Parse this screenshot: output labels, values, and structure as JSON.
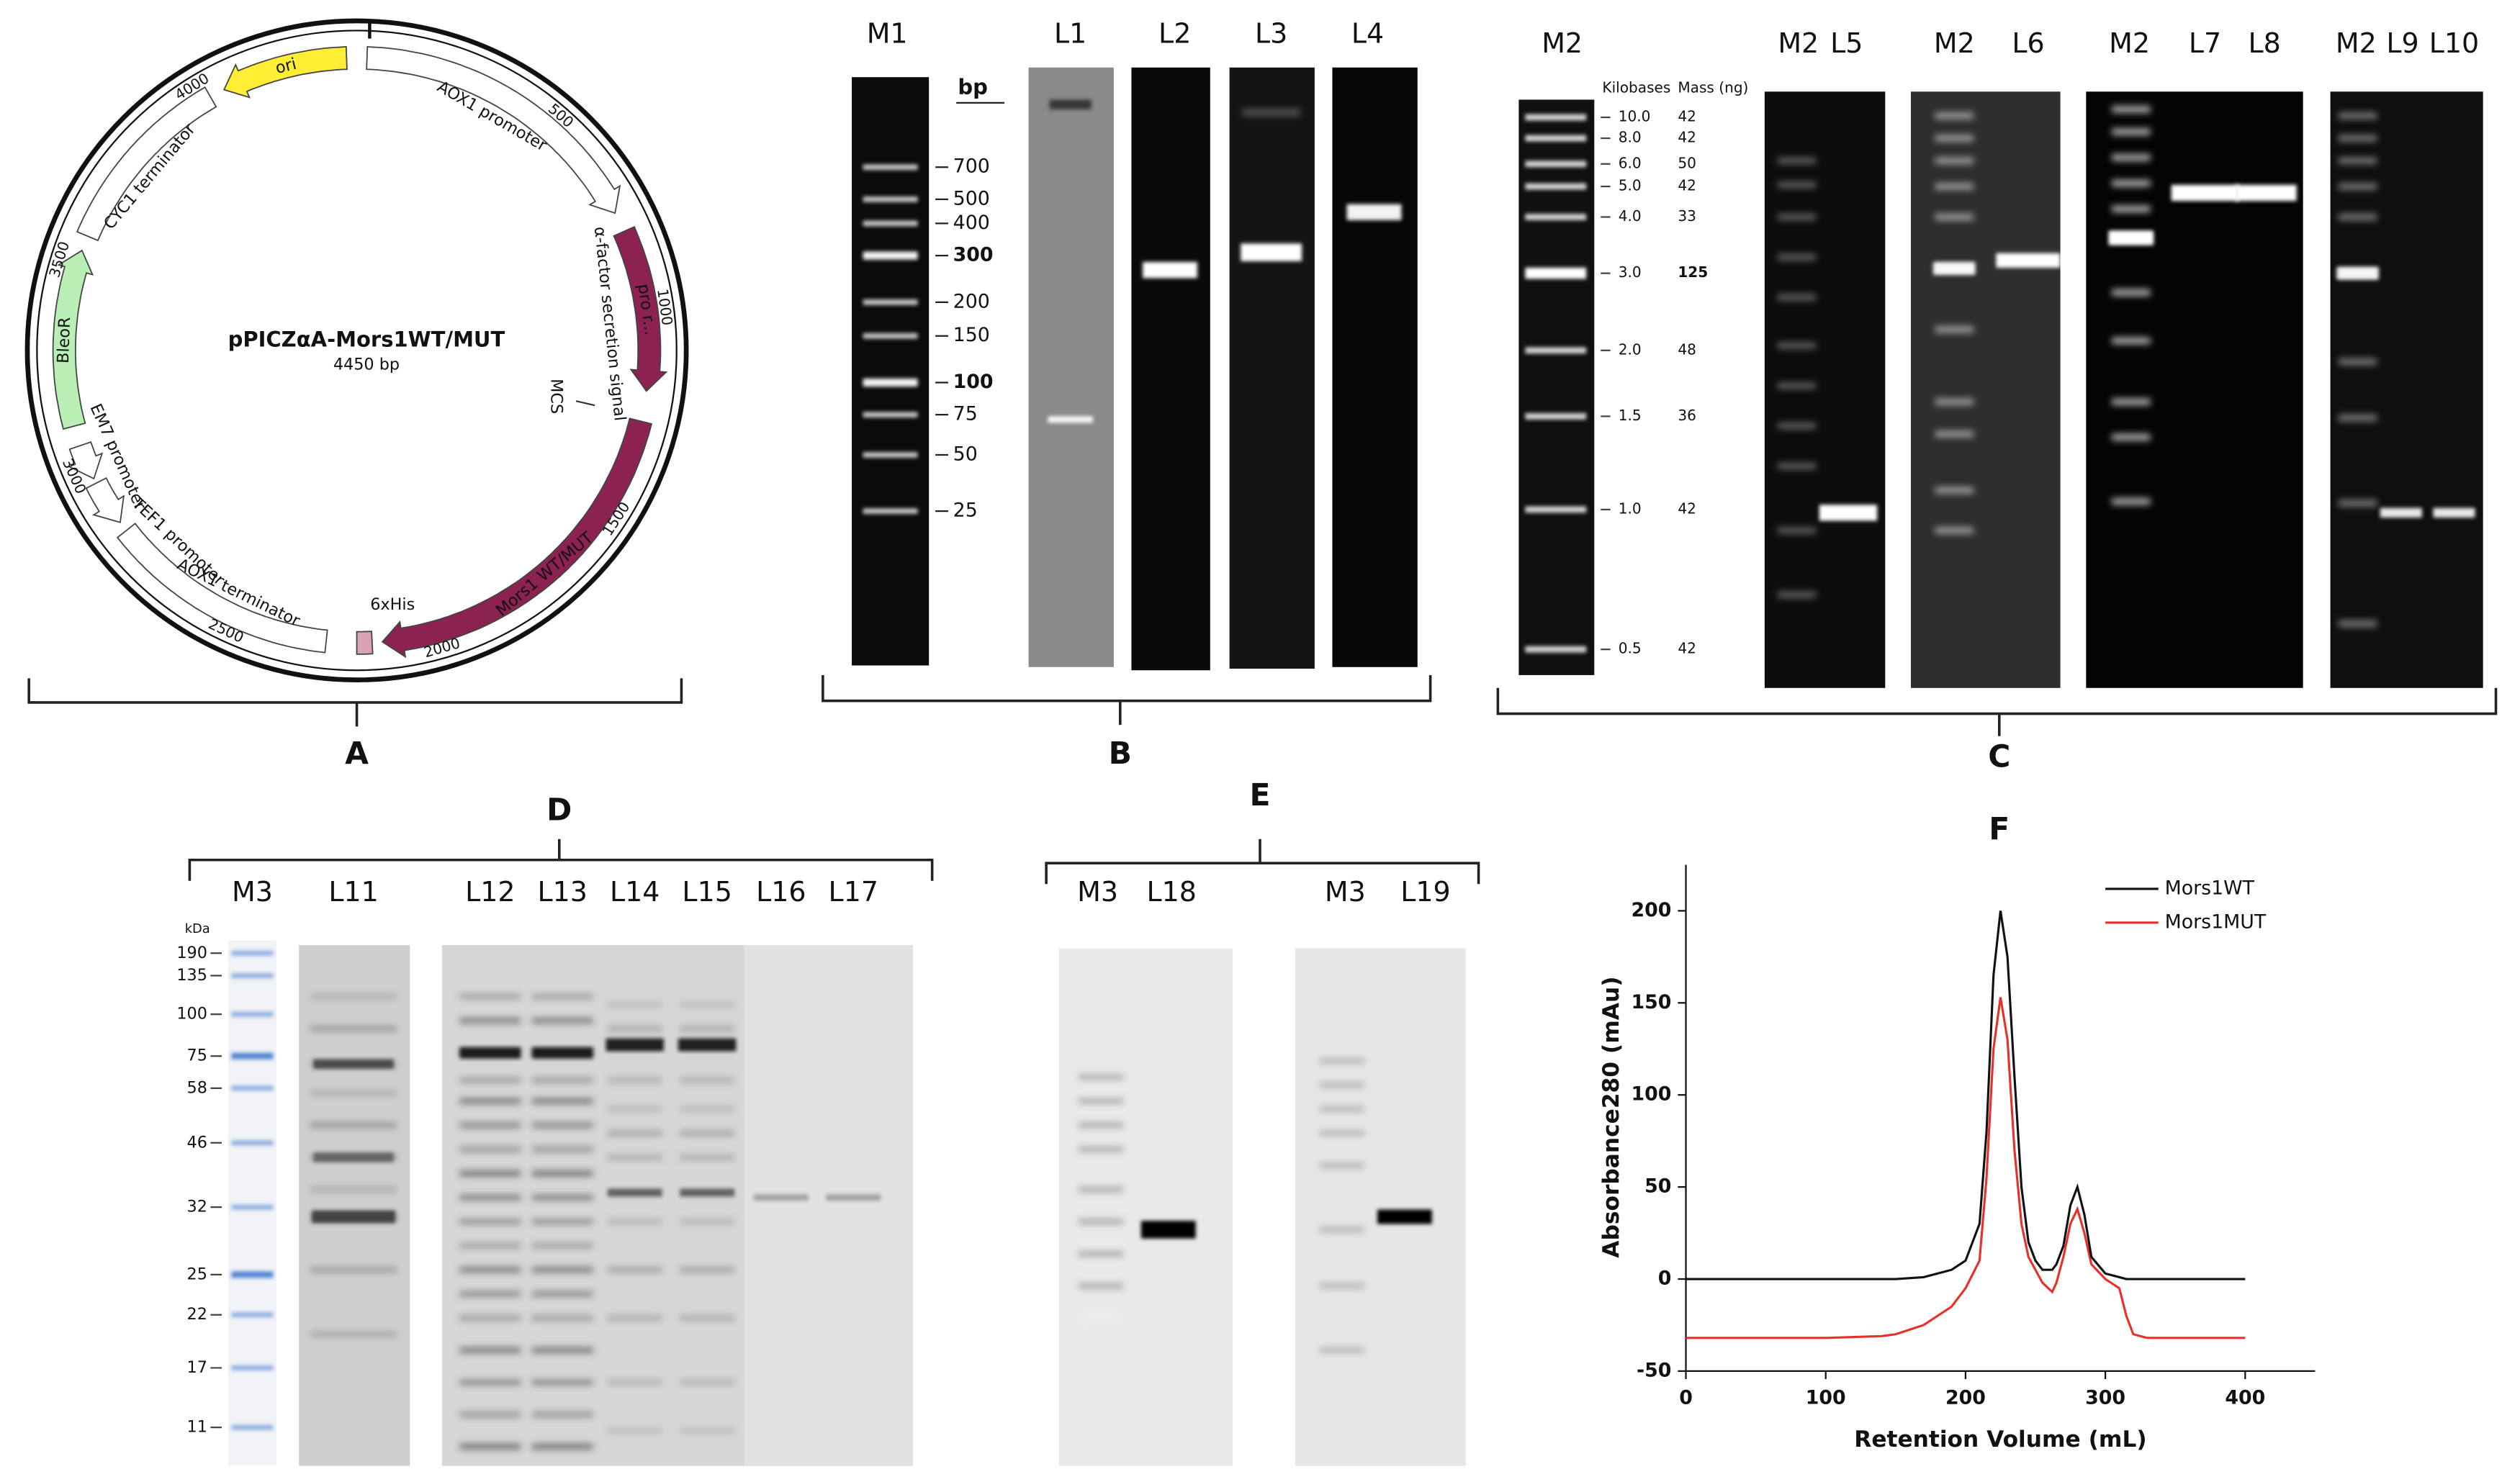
{
  "panels": {
    "A": {
      "label": "A",
      "plasmid": {
        "name": "pPICZαA-Mors1WT/MUT",
        "size": "4450 bp",
        "positions": [
          "500",
          "1000",
          "1500",
          "2000",
          "2500",
          "3000",
          "3500",
          "4000"
        ],
        "features": [
          "AOX1 promoter",
          "α-factor secretion signal",
          "pro r...",
          "MCS",
          "Mors1 WT/MUT",
          "6xHis",
          "AOX1 terminator",
          "TEF1 promoter",
          "EM7 promoter",
          "BleoR",
          "CYC1 terminator",
          "ori"
        ]
      }
    },
    "B": {
      "label": "B",
      "lanes": [
        "M1",
        "L1",
        "L2",
        "L3",
        "L4"
      ],
      "unit": "bp",
      "ladder": [
        "700",
        "500",
        "400",
        "300",
        "200",
        "150",
        "100",
        "75",
        "50",
        "25"
      ]
    },
    "C": {
      "label": "C",
      "lanes": [
        "M2",
        "M2",
        "L5",
        "M2",
        "L6",
        "M2",
        "L7",
        "L8",
        "M2",
        "L9",
        "L10"
      ],
      "ladder_headers": [
        "Kilobases",
        "Mass (ng)"
      ],
      "ladder": [
        [
          "10.0",
          "42"
        ],
        [
          "8.0",
          "42"
        ],
        [
          "6.0",
          "50"
        ],
        [
          "5.0",
          "42"
        ],
        [
          "4.0",
          "33"
        ],
        [
          "3.0",
          "125"
        ],
        [
          "2.0",
          "48"
        ],
        [
          "1.5",
          "36"
        ],
        [
          "1.0",
          "42"
        ],
        [
          "0.5",
          "42"
        ]
      ]
    },
    "D": {
      "label": "D",
      "lanes": [
        "M3",
        "L11",
        "L12",
        "L13",
        "L14",
        "L15",
        "L16",
        "L17"
      ],
      "unit": "kDa",
      "ladder": [
        "190",
        "135",
        "100",
        "75",
        "58",
        "46",
        "32",
        "25",
        "22",
        "17",
        "11"
      ]
    },
    "E": {
      "label": "E",
      "lanes": [
        "M3",
        "L18",
        "M3",
        "L19"
      ]
    },
    "F": {
      "label": "F",
      "chart_data": {
        "type": "line",
        "xlabel": "Retention Volume (mL)",
        "ylabel": "Absorbance280 (mAu)",
        "x": [
          0,
          100,
          140,
          150,
          170,
          190,
          200,
          210,
          215,
          220,
          225,
          230,
          235,
          240,
          245,
          250,
          255,
          262,
          265,
          270,
          275,
          280,
          285,
          290,
          300,
          310,
          315,
          320,
          330,
          400
        ],
        "series": [
          {
            "name": "Mors1WT",
            "color": "#111111",
            "values": [
              0,
              0,
              0,
              0,
              1,
              5,
              10,
              30,
              80,
              165,
              200,
              175,
              110,
              50,
              20,
              10,
              5,
              5,
              8,
              18,
              40,
              50,
              35,
              12,
              3,
              1,
              0,
              0,
              0,
              0
            ]
          },
          {
            "name": "Mors1MUT",
            "color": "#e8302a",
            "values": [
              -32,
              -32,
              -31,
              -30,
              -25,
              -15,
              -5,
              10,
              55,
              125,
              153,
              130,
              70,
              30,
              12,
              5,
              -2,
              -7,
              -2,
              12,
              30,
              38,
              25,
              8,
              0,
              -5,
              -20,
              -30,
              -32,
              -32
            ]
          }
        ],
        "xlim": [
          0,
          450
        ],
        "ylim": [
          -50,
          225
        ],
        "xticks": [
          0,
          100,
          200,
          300,
          400
        ],
        "yticks": [
          -50,
          0,
          50,
          100,
          150,
          200
        ],
        "legend": "upper right"
      }
    }
  }
}
